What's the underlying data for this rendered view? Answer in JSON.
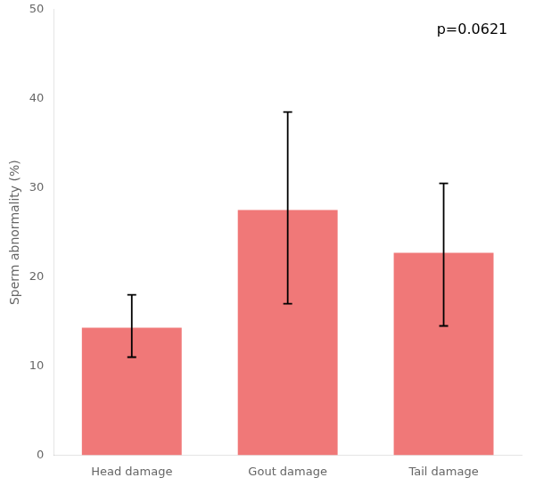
{
  "chart_data": {
    "type": "bar",
    "categories": [
      "Head damage",
      "Gout damage",
      "Tail damage"
    ],
    "values": [
      14.3,
      27.5,
      22.7
    ],
    "errors_lower": [
      3.3,
      10.5,
      8.2
    ],
    "errors_upper": [
      3.7,
      11.0,
      7.8
    ],
    "color": "#F07878",
    "ylabel": "Sperm abnormality (%)",
    "ylim": [
      0,
      50
    ],
    "yticks": [
      0,
      10,
      20,
      30,
      40,
      50
    ],
    "annotation": "p=0.0621",
    "grid": false
  }
}
